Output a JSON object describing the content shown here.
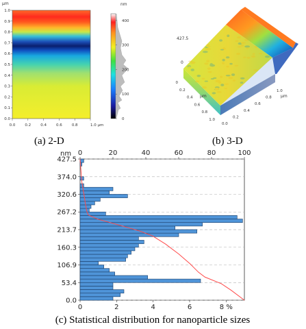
{
  "captions": {
    "a": "(a) 2-D",
    "b": "(b) 3-D",
    "c": "(c) Statistical distribution for nanoparticle sizes"
  },
  "colors": {
    "bar_fill": "#4f94d8",
    "bar_stroke": "#1a3c66",
    "curve": "#ff4a4a",
    "grid": "#b0b0b0"
  },
  "chart_data": [
    {
      "type": "heatmap",
      "panel": "a",
      "x_unit": "µm",
      "y_unit": "µm",
      "x_ticks": [
        "0.0",
        "0.2",
        "0.4",
        "0.6",
        "0.8",
        "1.0 µm"
      ],
      "y_ticks": [
        "0.0",
        "0.1",
        "0.2",
        "0.3",
        "0.4",
        "0.5",
        "0.6",
        "0.7",
        "0.8",
        "0.9",
        "1.0"
      ],
      "xlim": [
        0,
        1
      ],
      "ylim": [
        0,
        1
      ],
      "colorbar": {
        "unit": "nm",
        "ticks": [
          "0",
          "100",
          "200",
          "300",
          "400"
        ],
        "range": [
          0,
          427.5
        ]
      }
    },
    {
      "type": "surface",
      "panel": "b",
      "z_ticks": [
        "427.5",
        "0"
      ],
      "x_unit": "µm",
      "y_unit": "µm",
      "x_ticks": [
        "0",
        "0.2",
        "0.4",
        "0.6",
        "0.8",
        "1.0"
      ],
      "y_ticks": [
        "0.0",
        "0.2",
        "0.4",
        "0.6",
        "0.8",
        "1.0"
      ]
    },
    {
      "type": "bar",
      "orientation": "horizontal",
      "panel": "c",
      "y_unit": "nm",
      "ylim": [
        0,
        427.5
      ],
      "y_ticks": [
        "0.0",
        "53.4",
        "106.9",
        "160.3",
        "213.7",
        "267.2",
        "320.6",
        "374.0",
        "427.5"
      ],
      "bottom_axis": {
        "ticks": [
          "0",
          "2",
          "4",
          "6",
          "8 %"
        ],
        "max": 9.0
      },
      "top_axis": {
        "ticks": [
          "0",
          "20",
          "40",
          "60",
          "80",
          "100"
        ],
        "max": 100
      },
      "bin_width": 10.7,
      "bins": [
        {
          "y": 0.0,
          "value": 1.8
        },
        {
          "y": 10.7,
          "value": 2.2
        },
        {
          "y": 21.4,
          "value": 2.4
        },
        {
          "y": 32.1,
          "value": 1.8
        },
        {
          "y": 42.8,
          "value": 1.8
        },
        {
          "y": 53.4,
          "value": 6.6
        },
        {
          "y": 64.1,
          "value": 3.7
        },
        {
          "y": 74.8,
          "value": 1.9
        },
        {
          "y": 85.5,
          "value": 1.6
        },
        {
          "y": 96.2,
          "value": 1.3
        },
        {
          "y": 106.9,
          "value": 1.0
        },
        {
          "y": 117.6,
          "value": 2.5
        },
        {
          "y": 128.3,
          "value": 2.6
        },
        {
          "y": 139.0,
          "value": 2.8
        },
        {
          "y": 149.6,
          "value": 3.0
        },
        {
          "y": 160.3,
          "value": 3.2
        },
        {
          "y": 171.0,
          "value": 3.5
        },
        {
          "y": 181.7,
          "value": 3.2
        },
        {
          "y": 192.4,
          "value": 5.4
        },
        {
          "y": 203.1,
          "value": 6.4
        },
        {
          "y": 213.7,
          "value": 5.2
        },
        {
          "y": 224.4,
          "value": 6.7
        },
        {
          "y": 235.1,
          "value": 8.9
        },
        {
          "y": 245.8,
          "value": 8.6
        },
        {
          "y": 256.5,
          "value": 1.4
        },
        {
          "y": 267.2,
          "value": 0.5
        },
        {
          "y": 277.9,
          "value": 0.6
        },
        {
          "y": 288.6,
          "value": 0.8
        },
        {
          "y": 299.3,
          "value": 1.1
        },
        {
          "y": 310.0,
          "value": 2.6
        },
        {
          "y": 320.6,
          "value": 1.6
        },
        {
          "y": 331.3,
          "value": 1.8
        },
        {
          "y": 342.0,
          "value": 0.2
        },
        {
          "y": 352.7,
          "value": 0.0
        },
        {
          "y": 363.4,
          "value": 0.2
        },
        {
          "y": 374.0,
          "value": 0.0
        },
        {
          "y": 384.7,
          "value": 0.0
        },
        {
          "y": 395.4,
          "value": 0.0
        },
        {
          "y": 406.1,
          "value": 0.1
        },
        {
          "y": 416.8,
          "value": 0.2
        }
      ],
      "cumulative_curve": [
        {
          "y": 0,
          "pct": 100
        },
        {
          "y": 30,
          "pct": 92
        },
        {
          "y": 50,
          "pct": 86
        },
        {
          "y": 70,
          "pct": 76
        },
        {
          "y": 85,
          "pct": 72
        },
        {
          "y": 110,
          "pct": 67
        },
        {
          "y": 140,
          "pct": 60
        },
        {
          "y": 170,
          "pct": 52
        },
        {
          "y": 195,
          "pct": 44
        },
        {
          "y": 210,
          "pct": 36
        },
        {
          "y": 230,
          "pct": 22
        },
        {
          "y": 245,
          "pct": 11
        },
        {
          "y": 258,
          "pct": 5
        },
        {
          "y": 270,
          "pct": 4
        },
        {
          "y": 300,
          "pct": 3
        },
        {
          "y": 330,
          "pct": 2
        },
        {
          "y": 360,
          "pct": 1
        },
        {
          "y": 427.5,
          "pct": 0
        }
      ]
    }
  ]
}
